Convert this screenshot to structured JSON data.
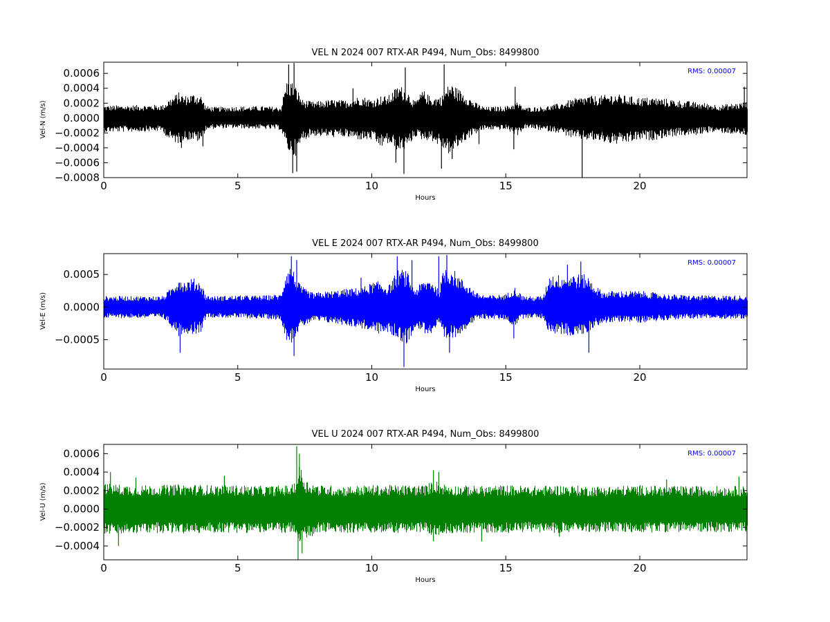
{
  "figure": {
    "background": "#ffffff"
  },
  "chart_data": [
    {
      "type": "line",
      "title": "VEL N 2024 007 RTX-AR  P494, Num_Obs: 8499800",
      "xlabel": "Hours",
      "ylabel": "Vel-N (m/s)",
      "xlim": [
        0,
        24
      ],
      "ylim": [
        -0.0008,
        0.00075
      ],
      "x_ticks": [
        0,
        5,
        10,
        15,
        20
      ],
      "x_tick_labels": [
        "0",
        "5",
        "10",
        "15",
        "20"
      ],
      "y_ticks": [
        -0.0008,
        -0.0006,
        -0.0004,
        -0.0002,
        0,
        0.0002,
        0.0004,
        0.0006
      ],
      "y_tick_labels": [
        "−0.0008",
        "−0.0006",
        "−0.0004",
        "−0.0002",
        "0.0000",
        "0.0002",
        "0.0004",
        "0.0006"
      ],
      "color": "#000000",
      "grid": false,
      "annotation": "RMS:  0.00007",
      "annotation_position": "top-right",
      "annotation_color": "#0000ff",
      "envelope": {
        "x": [
          0,
          2.2,
          2.4,
          2.8,
          3.0,
          3.3,
          3.6,
          3.8,
          4.2,
          5.0,
          6.0,
          6.6,
          6.8,
          7.0,
          7.2,
          7.4,
          7.8,
          8.5,
          9.0,
          9.6,
          10.0,
          10.3,
          10.6,
          11.0,
          11.3,
          11.6,
          11.9,
          12.2,
          12.6,
          12.9,
          13.2,
          13.5,
          13.8,
          14.2,
          15.0,
          15.4,
          15.7,
          16.0,
          16.5,
          17.0,
          17.5,
          18.0,
          18.5,
          19.0,
          19.5,
          20.0,
          20.5,
          21.0,
          21.5,
          22.0,
          22.5,
          23.0,
          23.5,
          24.0
        ],
        "max": [
          0.00017,
          0.00018,
          0.00025,
          0.00035,
          0.0003,
          0.00033,
          0.00032,
          0.00016,
          0.00015,
          0.00016,
          0.00016,
          0.00015,
          0.0005,
          0.0005,
          0.0004,
          0.00025,
          0.00022,
          0.00025,
          0.00024,
          0.0003,
          0.00025,
          0.0003,
          0.0003,
          0.00045,
          0.00038,
          0.00022,
          0.00038,
          0.00028,
          0.0003,
          0.00048,
          0.0004,
          0.00033,
          0.00022,
          0.00015,
          0.00016,
          0.00022,
          0.00014,
          0.00015,
          0.00016,
          0.0002,
          0.00026,
          0.0003,
          0.0003,
          0.00033,
          0.0003,
          0.00028,
          0.00028,
          0.00026,
          0.00024,
          0.00022,
          0.0002,
          0.00018,
          0.0002,
          0.00022
        ],
        "min": [
          -0.00019,
          -0.00018,
          -0.0003,
          -0.00035,
          -0.0003,
          -0.0003,
          -0.00033,
          -0.00016,
          -0.00014,
          -0.00014,
          -0.00015,
          -0.00016,
          -0.0004,
          -0.00052,
          -0.0005,
          -0.0003,
          -0.00024,
          -0.00026,
          -0.00026,
          -0.0003,
          -0.0003,
          -0.0004,
          -0.00035,
          -0.00045,
          -0.00042,
          -0.00025,
          -0.0003,
          -0.0003,
          -0.0004,
          -0.0005,
          -0.0004,
          -0.0003,
          -0.00022,
          -0.00016,
          -0.00016,
          -0.00024,
          -0.00014,
          -0.00015,
          -0.00018,
          -0.0002,
          -0.00028,
          -0.0003,
          -0.00032,
          -0.00036,
          -0.00034,
          -0.0003,
          -0.0003,
          -0.00026,
          -0.00024,
          -0.00024,
          -0.0002,
          -0.0002,
          -0.00022,
          -0.00024
        ]
      },
      "spikes": [
        {
          "x": 6.9,
          "y": 0.00072
        },
        {
          "x": 7.1,
          "y": 0.00074
        },
        {
          "x": 7.2,
          "y": -0.00072
        },
        {
          "x": 7.05,
          "y": -0.00074
        },
        {
          "x": 11.2,
          "y": -0.00075
        },
        {
          "x": 12.7,
          "y": 0.00072
        },
        {
          "x": 12.6,
          "y": -0.00068
        },
        {
          "x": 11.25,
          "y": 0.00068
        },
        {
          "x": 9.3,
          "y": 0.0004
        },
        {
          "x": 10.9,
          "y": -0.0006
        },
        {
          "x": 15.3,
          "y": -0.00042
        },
        {
          "x": 15.35,
          "y": 0.00042
        },
        {
          "x": 17.85,
          "y": -0.0008
        },
        {
          "x": 23.9,
          "y": 0.00042
        },
        {
          "x": 2.9,
          "y": -0.0004
        },
        {
          "x": 3.7,
          "y": -0.00038
        },
        {
          "x": 13.0,
          "y": -0.00055
        },
        {
          "x": 14.0,
          "y": -0.00035
        }
      ]
    },
    {
      "type": "line",
      "title": "VEL E 2024 007 RTX-AR  P494, Num_Obs: 8499800",
      "xlabel": "Hours",
      "ylabel": "Vel-E (m/s)",
      "xlim": [
        0,
        24
      ],
      "ylim": [
        -0.00095,
        0.00082
      ],
      "x_ticks": [
        0,
        5,
        10,
        15,
        20
      ],
      "x_tick_labels": [
        "0",
        "5",
        "10",
        "15",
        "20"
      ],
      "y_ticks": [
        -0.0005,
        0,
        0.0005
      ],
      "y_tick_labels": [
        "−0.0005",
        "0.0000",
        "0.0005"
      ],
      "color": "#0000ff",
      "grid": false,
      "annotation": "RMS:  0.00007",
      "annotation_position": "top-right",
      "annotation_color": "#0000ff",
      "envelope": {
        "x": [
          0,
          2.2,
          2.5,
          2.8,
          3.0,
          3.3,
          3.6,
          3.8,
          4.2,
          5.0,
          6.0,
          6.6,
          6.8,
          7.0,
          7.2,
          7.5,
          7.8,
          8.5,
          9.0,
          9.6,
          10.0,
          10.3,
          10.6,
          11.0,
          11.3,
          11.6,
          11.9,
          12.2,
          12.5,
          12.7,
          13.0,
          13.3,
          13.6,
          13.9,
          14.3,
          15.0,
          15.3,
          15.6,
          16.0,
          16.4,
          16.6,
          17.0,
          17.5,
          18.0,
          18.3,
          18.6,
          19.0,
          19.5,
          20.0,
          21.0,
          22.0,
          23.0,
          24.0
        ],
        "max": [
          0.00017,
          0.00017,
          0.0003,
          0.00048,
          0.0004,
          0.00045,
          0.0004,
          0.00018,
          0.00017,
          0.00018,
          0.00018,
          0.0002,
          0.0006,
          0.00065,
          0.0004,
          0.00028,
          0.00022,
          0.00025,
          0.00028,
          0.0003,
          0.00038,
          0.0004,
          0.00032,
          0.0006,
          0.00055,
          0.00028,
          0.0004,
          0.00045,
          0.00025,
          0.00065,
          0.0006,
          0.00045,
          0.00035,
          0.00022,
          0.00018,
          0.0002,
          0.00032,
          0.00018,
          0.00016,
          0.00018,
          0.0005,
          0.0005,
          0.00052,
          0.0005,
          0.00035,
          0.00024,
          0.00025,
          0.00025,
          0.00025,
          0.0002,
          0.00018,
          0.00018,
          0.00018
        ],
        "min": [
          -0.00017,
          -0.00017,
          -0.0003,
          -0.00045,
          -0.0004,
          -0.00042,
          -0.0004,
          -0.00016,
          -0.00016,
          -0.00017,
          -0.00018,
          -0.0002,
          -0.0005,
          -0.00055,
          -0.0004,
          -0.00028,
          -0.00022,
          -0.00025,
          -0.00028,
          -0.00033,
          -0.00038,
          -0.00042,
          -0.0004,
          -0.0005,
          -0.0006,
          -0.0003,
          -0.0004,
          -0.00042,
          -0.00028,
          -0.00055,
          -0.0005,
          -0.0004,
          -0.0003,
          -0.0002,
          -0.00018,
          -0.0002,
          -0.0003,
          -0.00018,
          -0.00016,
          -0.00018,
          -0.0004,
          -0.00042,
          -0.00045,
          -0.00042,
          -0.0003,
          -0.00025,
          -0.00024,
          -0.00022,
          -0.00024,
          -0.0002,
          -0.00018,
          -0.00018,
          -0.00018
        ]
      },
      "spikes": [
        {
          "x": 2.85,
          "y": -0.0007
        },
        {
          "x": 7.0,
          "y": 0.00078
        },
        {
          "x": 7.2,
          "y": 0.00072
        },
        {
          "x": 7.1,
          "y": -0.00075
        },
        {
          "x": 11.2,
          "y": -0.00092
        },
        {
          "x": 10.95,
          "y": 0.00078
        },
        {
          "x": 12.8,
          "y": 0.0008
        },
        {
          "x": 12.5,
          "y": 0.00078
        },
        {
          "x": 12.9,
          "y": -0.0007
        },
        {
          "x": 15.3,
          "y": -0.00048
        },
        {
          "x": 17.3,
          "y": 0.00065
        },
        {
          "x": 17.8,
          "y": 0.0007
        },
        {
          "x": 18.1,
          "y": -0.0007
        },
        {
          "x": 11.5,
          "y": 0.00072
        },
        {
          "x": 9.6,
          "y": 0.00045
        }
      ]
    },
    {
      "type": "line",
      "title": "VEL U 2024 007 RTX-AR  P494, Num_Obs: 8499800",
      "xlabel": "Hours",
      "ylabel": "Vel-U (m/s)",
      "xlim": [
        0,
        24
      ],
      "ylim": [
        -0.00055,
        0.0007
      ],
      "x_ticks": [
        0,
        5,
        10,
        15,
        20
      ],
      "x_tick_labels": [
        "0",
        "5",
        "10",
        "15",
        "20"
      ],
      "y_ticks": [
        -0.0004,
        -0.0002,
        0,
        0.0002,
        0.0004,
        0.0006
      ],
      "y_tick_labels": [
        "−0.0004",
        "−0.0002",
        "0.0000",
        "0.0002",
        "0.0004",
        "0.0006"
      ],
      "color": "#008000",
      "grid": false,
      "annotation": "RMS:  0.00007",
      "annotation_position": "top-right",
      "annotation_color": "#0000ff",
      "envelope": {
        "x": [
          0,
          0.5,
          1,
          2,
          3,
          4,
          5,
          6,
          7,
          7.2,
          7.3,
          7.5,
          8,
          9,
          10,
          11,
          12,
          12.3,
          12.6,
          13,
          14,
          15,
          16,
          17,
          18,
          19,
          20,
          21,
          22,
          23,
          24
        ],
        "max": [
          0.00028,
          0.00027,
          0.00026,
          0.00026,
          0.00027,
          0.00026,
          0.00026,
          0.00025,
          0.00026,
          0.00035,
          0.0005,
          0.00032,
          0.00026,
          0.00025,
          0.00026,
          0.00026,
          0.00026,
          0.00032,
          0.00028,
          0.00026,
          0.00025,
          0.00026,
          0.00025,
          0.00026,
          0.00025,
          0.00025,
          0.00026,
          0.00025,
          0.00025,
          0.00025,
          0.00025
        ],
        "min": [
          -0.00027,
          -0.00028,
          -0.00027,
          -0.00026,
          -0.00027,
          -0.00026,
          -0.00026,
          -0.00026,
          -0.00026,
          -0.00035,
          -0.0004,
          -0.00035,
          -0.00026,
          -0.00026,
          -0.00026,
          -0.00026,
          -0.00026,
          -0.0003,
          -0.00028,
          -0.00026,
          -0.00026,
          -0.00026,
          -0.00025,
          -0.00026,
          -0.00025,
          -0.00025,
          -0.00026,
          -0.00025,
          -0.00025,
          -0.00025,
          -0.00025
        ]
      },
      "spikes": [
        {
          "x": 0.25,
          "y": 0.0004
        },
        {
          "x": 0.55,
          "y": -0.0004
        },
        {
          "x": 4.5,
          "y": 0.00036
        },
        {
          "x": 7.2,
          "y": 0.00068
        },
        {
          "x": 7.3,
          "y": 0.0006
        },
        {
          "x": 7.25,
          "y": -0.00055
        },
        {
          "x": 7.4,
          "y": -0.00048
        },
        {
          "x": 12.3,
          "y": 0.00042
        },
        {
          "x": 12.5,
          "y": 0.0004
        },
        {
          "x": 12.3,
          "y": -0.00035
        },
        {
          "x": 14.1,
          "y": -0.00035
        },
        {
          "x": 23.7,
          "y": 0.00035
        },
        {
          "x": 1.2,
          "y": 0.00034
        },
        {
          "x": 17.0,
          "y": -0.0003
        },
        {
          "x": 21.0,
          "y": 0.00032
        }
      ]
    }
  ]
}
